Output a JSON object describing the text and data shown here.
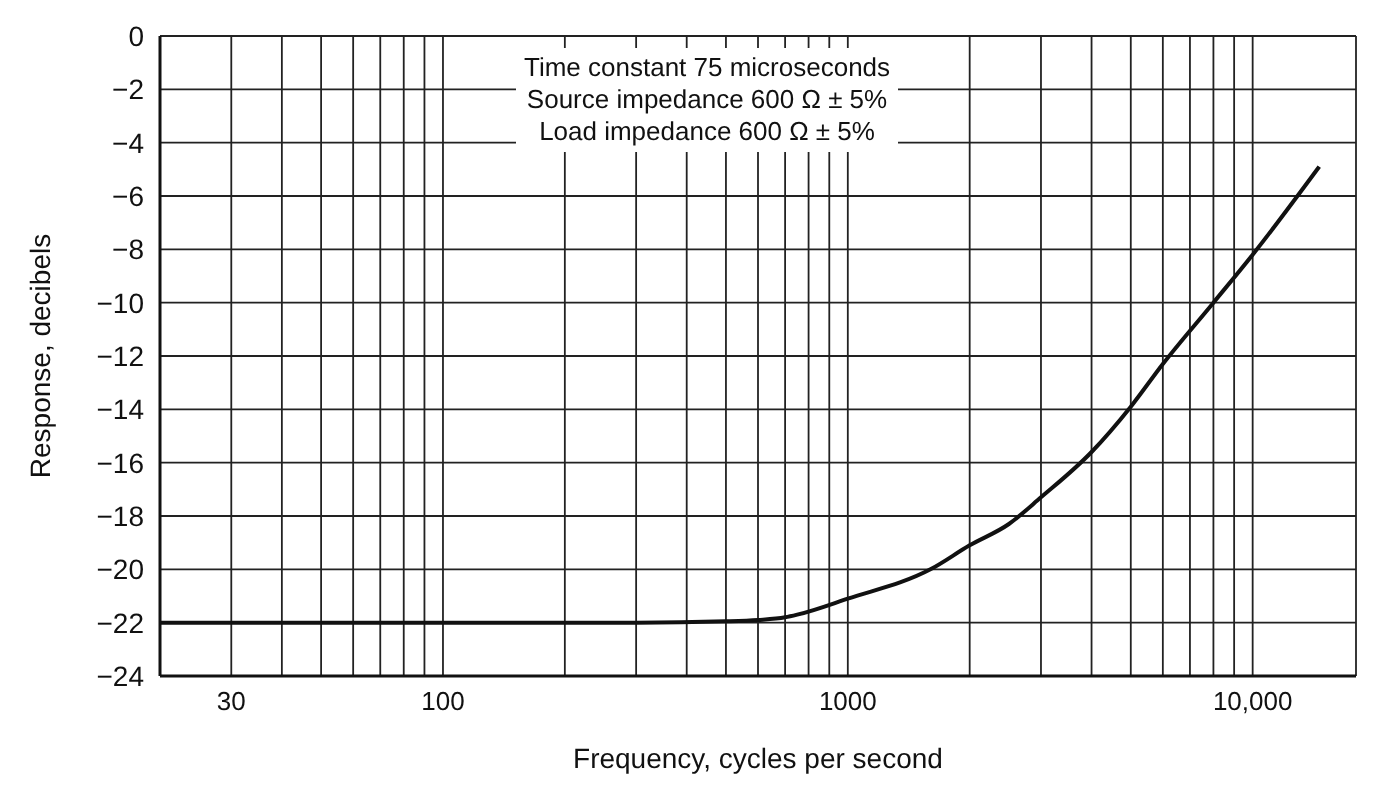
{
  "chart_data": {
    "type": "line",
    "xlabel": "Frequency, cycles per second",
    "ylabel": "Response, decibels",
    "annotations": [
      "Time constant 75 microseconds",
      "Source impedance 600 Ω ± 5%",
      "Load impedance 600 Ω ± 5%"
    ],
    "log": "x",
    "grid": true,
    "marker": "none",
    "line_style": "solid",
    "xlim": [
      20,
      18000
    ],
    "ylim": [
      -24,
      0
    ],
    "xticks": [
      {
        "value": 20,
        "label": null
      },
      30,
      {
        "value": 40,
        "label": null
      },
      {
        "value": 50,
        "label": null
      },
      {
        "value": 60,
        "label": null
      },
      {
        "value": 70,
        "label": null
      },
      {
        "value": 80,
        "label": null
      },
      {
        "value": 90,
        "label": null
      },
      100,
      {
        "value": 200,
        "label": null
      },
      {
        "value": 300,
        "label": null
      },
      {
        "value": 400,
        "label": null
      },
      {
        "value": 500,
        "label": null
      },
      {
        "value": 600,
        "label": null
      },
      {
        "value": 700,
        "label": null
      },
      {
        "value": 800,
        "label": null
      },
      {
        "value": 900,
        "label": null
      },
      1000,
      {
        "value": 2000,
        "label": null
      },
      {
        "value": 3000,
        "label": null
      },
      {
        "value": 4000,
        "label": null
      },
      {
        "value": 5000,
        "label": null
      },
      {
        "value": 6000,
        "label": null
      },
      {
        "value": 7000,
        "label": null
      },
      {
        "value": 8000,
        "label": null
      },
      {
        "value": 9000,
        "label": null
      },
      {
        "value": 10000,
        "label": "10,000"
      }
    ],
    "yticks": [
      0,
      -2,
      -4,
      -6,
      -8,
      -10,
      -12,
      -14,
      -16,
      -18,
      -20,
      -22,
      -24
    ],
    "x": [
      20,
      100,
      300,
      500,
      600,
      700,
      750,
      1000,
      1600,
      2000,
      2500,
      3000,
      4000,
      5000,
      6000,
      8000,
      10000,
      14600
    ],
    "series": [
      {
        "color": "#111111",
        "values": [
          -22,
          -22,
          -22,
          -21.95,
          -21.9,
          -21.8,
          -21.7,
          -21.1,
          -20,
          -19.1,
          -18.3,
          -17.3,
          -15.6,
          -13.9,
          -12.3,
          -10,
          -8.2,
          -4.9
        ]
      }
    ]
  }
}
